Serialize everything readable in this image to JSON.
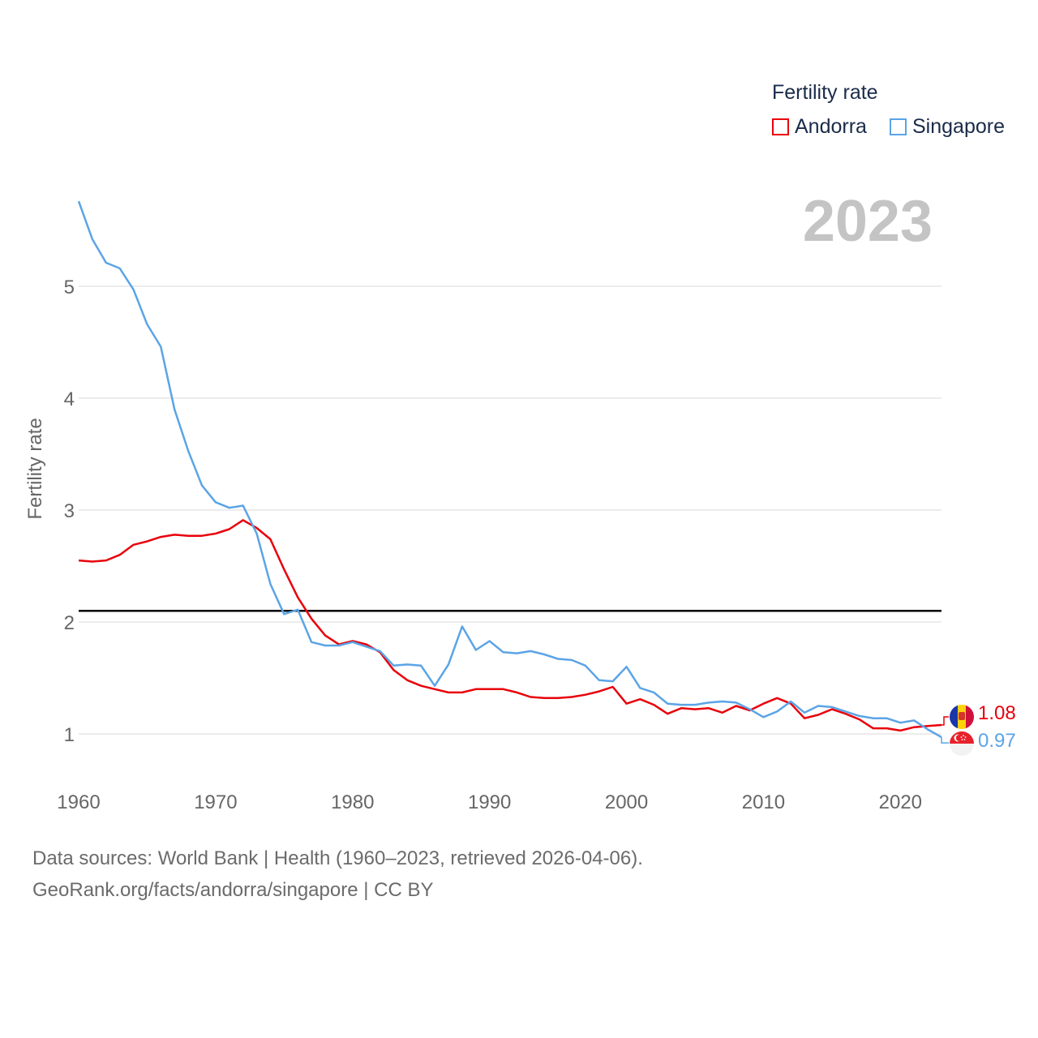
{
  "legend": {
    "title": "Fertility rate",
    "items": [
      {
        "label": "Andorra",
        "color": "#e8000b"
      },
      {
        "label": "Singapore",
        "color": "#5ba4e6"
      }
    ]
  },
  "year_label": "2023",
  "end_values": {
    "andorra": "1.08",
    "singapore": "0.97"
  },
  "flags": {
    "andorra": "andorra-flag-icon",
    "singapore": "singapore-flag-icon"
  },
  "source": {
    "line1": "Data sources: World Bank | Health (1960–2023, retrieved 2026-04-06).",
    "line2": "GeoRank.org/facts/andorra/singapore | CC BY"
  },
  "chart_data": {
    "type": "line",
    "title": "",
    "xlabel": "",
    "ylabel": "Fertility rate",
    "xlim": [
      1960,
      2023
    ],
    "ylim": [
      0.6,
      5.8
    ],
    "x_ticks": [
      1960,
      1970,
      1980,
      1990,
      2000,
      2010,
      2020
    ],
    "y_ticks": [
      1,
      2,
      3,
      4,
      5
    ],
    "reference_line": 2.1,
    "grid": true,
    "x": [
      1960,
      1961,
      1962,
      1963,
      1964,
      1965,
      1966,
      1967,
      1968,
      1969,
      1970,
      1971,
      1972,
      1973,
      1974,
      1975,
      1976,
      1977,
      1978,
      1979,
      1980,
      1981,
      1982,
      1983,
      1984,
      1985,
      1986,
      1987,
      1988,
      1989,
      1990,
      1991,
      1992,
      1993,
      1994,
      1995,
      1996,
      1997,
      1998,
      1999,
      2000,
      2001,
      2002,
      2003,
      2004,
      2005,
      2006,
      2007,
      2008,
      2009,
      2010,
      2011,
      2012,
      2013,
      2014,
      2015,
      2016,
      2017,
      2018,
      2019,
      2020,
      2021,
      2022,
      2023
    ],
    "series": [
      {
        "name": "Andorra",
        "color": "#e8000b",
        "values": [
          2.55,
          2.54,
          2.55,
          2.6,
          2.69,
          2.72,
          2.76,
          2.78,
          2.77,
          2.77,
          2.79,
          2.83,
          2.91,
          2.84,
          2.74,
          2.47,
          2.22,
          2.03,
          1.88,
          1.8,
          1.83,
          1.8,
          1.73,
          1.57,
          1.48,
          1.43,
          1.4,
          1.37,
          1.37,
          1.4,
          1.4,
          1.4,
          1.37,
          1.33,
          1.32,
          1.32,
          1.33,
          1.35,
          1.38,
          1.42,
          1.27,
          1.31,
          1.26,
          1.18,
          1.23,
          1.22,
          1.23,
          1.19,
          1.25,
          1.21,
          1.27,
          1.32,
          1.27,
          1.14,
          1.17,
          1.22,
          1.18,
          1.13,
          1.05,
          1.05,
          1.03,
          1.06,
          1.07,
          1.08
        ]
      },
      {
        "name": "Singapore",
        "color": "#5ba4e6",
        "values": [
          5.76,
          5.42,
          5.21,
          5.16,
          4.97,
          4.66,
          4.46,
          3.9,
          3.53,
          3.22,
          3.07,
          3.02,
          3.04,
          2.79,
          2.34,
          2.07,
          2.11,
          1.82,
          1.79,
          1.79,
          1.82,
          1.78,
          1.74,
          1.61,
          1.62,
          1.61,
          1.43,
          1.62,
          1.96,
          1.75,
          1.83,
          1.73,
          1.72,
          1.74,
          1.71,
          1.67,
          1.66,
          1.61,
          1.48,
          1.47,
          1.6,
          1.41,
          1.37,
          1.27,
          1.26,
          1.26,
          1.28,
          1.29,
          1.28,
          1.22,
          1.15,
          1.2,
          1.29,
          1.19,
          1.25,
          1.24,
          1.2,
          1.16,
          1.14,
          1.14,
          1.1,
          1.12,
          1.04,
          0.97
        ]
      }
    ]
  }
}
